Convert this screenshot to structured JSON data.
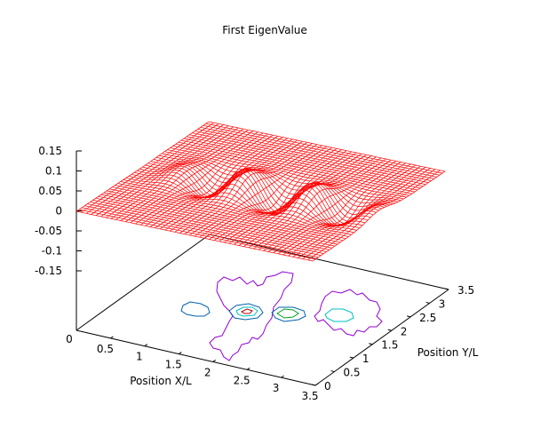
{
  "chart_data": {
    "type": "surface3d-with-contours",
    "title": "First EigenValue",
    "xlabel": "Position X/L",
    "ylabel": "Position Y/L",
    "zlabel": "",
    "xlim": [
      0,
      3.5
    ],
    "ylim": [
      0,
      3.5
    ],
    "zlim": [
      -0.15,
      0.15
    ],
    "x_ticks": [
      "0.5",
      "1",
      "1.5",
      "2",
      "2.5",
      "3",
      "3.5"
    ],
    "x_origin_label": "0",
    "y_ticks": [
      "0",
      "0.5",
      "1",
      "1.5",
      "2",
      "2.5",
      "3",
      "3.5"
    ],
    "z_ticks": [
      "0.15",
      "0.1",
      "0.05",
      "0",
      "-0.05",
      "-0.1",
      "-0.15"
    ],
    "surface_color": "#ff0000",
    "contour_colors": [
      "#0060ad",
      "#00c0c0",
      "#009e20",
      "#c00000",
      "#9400d3"
    ],
    "mode_peaks": [
      {
        "x": 1.25,
        "y": 1.75,
        "z": -0.06
      },
      {
        "x": 1.75,
        "y": 1.75,
        "z": 0.1
      },
      {
        "x": 2.25,
        "y": 1.75,
        "z": -0.1
      },
      {
        "x": 2.75,
        "y": 1.75,
        "z": 0.1
      }
    ]
  }
}
